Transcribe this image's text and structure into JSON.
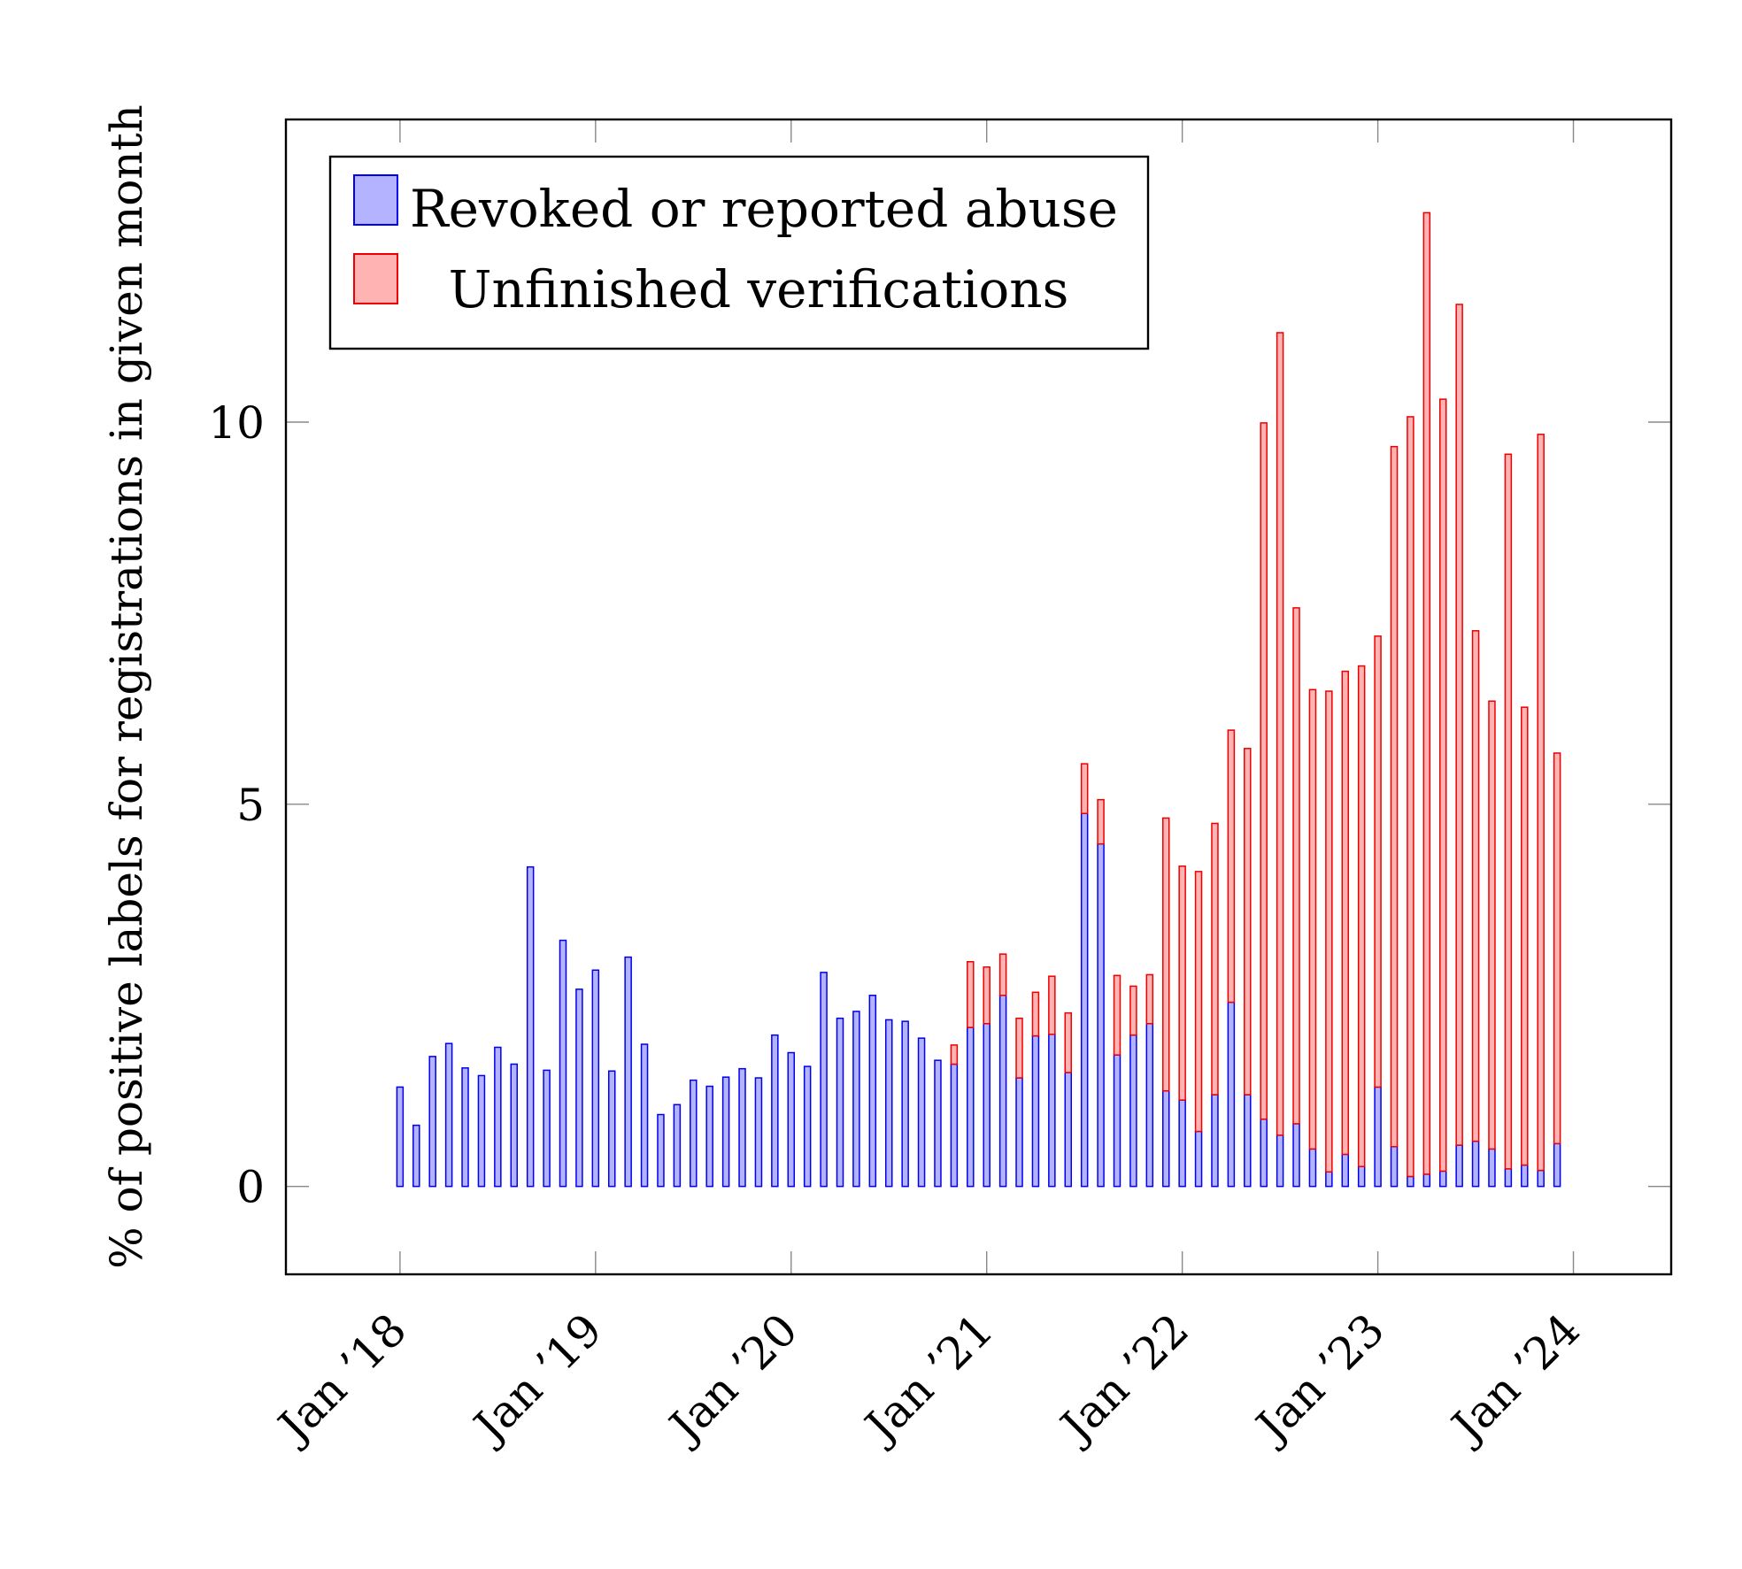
{
  "chart_data": {
    "type": "bar",
    "stacked": true,
    "ylabel": "% of positive labels for registrations in given month",
    "xlabel": "",
    "ylim": [
      -1.15,
      13.96
    ],
    "yticks": [
      0,
      5,
      10
    ],
    "x_tick_labels": [
      "Jan ’18",
      "Jan ’19",
      "Jan ’20",
      "Jan ’21",
      "Jan ’22",
      "Jan ’23",
      "Jan ’24"
    ],
    "x_tick_dates": [
      "2018-01",
      "2019-01",
      "2020-01",
      "2021-01",
      "2022-01",
      "2023-01",
      "2024-01"
    ],
    "xlim": [
      "2017-06",
      "2024-07"
    ],
    "legend_position": "top-left",
    "categories": [
      "2018-01",
      "2018-02",
      "2018-03",
      "2018-04",
      "2018-05",
      "2018-06",
      "2018-07",
      "2018-08",
      "2018-09",
      "2018-10",
      "2018-11",
      "2018-12",
      "2019-01",
      "2019-02",
      "2019-03",
      "2019-04",
      "2019-05",
      "2019-06",
      "2019-07",
      "2019-08",
      "2019-09",
      "2019-10",
      "2019-11",
      "2019-12",
      "2020-01",
      "2020-02",
      "2020-03",
      "2020-04",
      "2020-05",
      "2020-06",
      "2020-07",
      "2020-08",
      "2020-09",
      "2020-10",
      "2020-11",
      "2020-12",
      "2021-01",
      "2021-02",
      "2021-03",
      "2021-04",
      "2021-05",
      "2021-06",
      "2021-07",
      "2021-08",
      "2021-09",
      "2021-10",
      "2021-11",
      "2021-12",
      "2022-01",
      "2022-02",
      "2022-03",
      "2022-04",
      "2022-05",
      "2022-06",
      "2022-07",
      "2022-08",
      "2022-09",
      "2022-10",
      "2022-11",
      "2022-12",
      "2023-01",
      "2023-02",
      "2023-03",
      "2023-04",
      "2023-05",
      "2023-06",
      "2023-07",
      "2023-08",
      "2023-09",
      "2023-10",
      "2023-11",
      "2023-12"
    ],
    "series": [
      {
        "name": "Revoked or reported abuse",
        "color": "#0000ee",
        "fill": "#b3b3ff",
        "values": [
          1.3,
          0.8,
          1.7,
          1.87,
          1.55,
          1.45,
          1.82,
          1.6,
          4.18,
          1.52,
          3.22,
          2.58,
          2.83,
          1.51,
          3.0,
          1.86,
          0.94,
          1.07,
          1.39,
          1.31,
          1.43,
          1.54,
          1.42,
          1.98,
          1.75,
          1.57,
          2.8,
          2.2,
          2.29,
          2.5,
          2.18,
          2.16,
          1.94,
          1.65,
          1.6,
          2.08,
          2.13,
          2.5,
          1.42,
          1.97,
          1.99,
          1.49,
          4.88,
          4.48,
          1.72,
          1.98,
          2.13,
          1.25,
          1.13,
          0.72,
          1.2,
          2.41,
          1.2,
          0.88,
          0.67,
          0.82,
          0.49,
          0.19,
          0.42,
          0.26,
          1.3,
          0.52,
          0.13,
          0.16,
          0.2,
          0.54,
          0.59,
          0.49,
          0.23,
          0.28,
          0.21,
          0.56
        ]
      },
      {
        "name": "Unfinished verifications",
        "color": "#ee0000",
        "fill": "#ffb3b3",
        "values": [
          0,
          0,
          0,
          0,
          0,
          0,
          0,
          0,
          0,
          0,
          0,
          0,
          0,
          0,
          0,
          0,
          0,
          0,
          0,
          0,
          0,
          0,
          0,
          0,
          0,
          0,
          0,
          0,
          0,
          0,
          0,
          0,
          0,
          0,
          0.25,
          0.86,
          0.74,
          0.54,
          0.78,
          0.57,
          0.76,
          0.78,
          0.65,
          0.58,
          1.04,
          0.64,
          0.64,
          3.57,
          3.06,
          3.4,
          3.55,
          3.56,
          4.53,
          9.11,
          10.5,
          6.75,
          6.01,
          6.29,
          6.32,
          6.55,
          5.9,
          9.16,
          9.94,
          12.58,
          10.1,
          11.0,
          6.68,
          5.86,
          9.35,
          5.99,
          9.63,
          5.11
        ]
      }
    ]
  }
}
